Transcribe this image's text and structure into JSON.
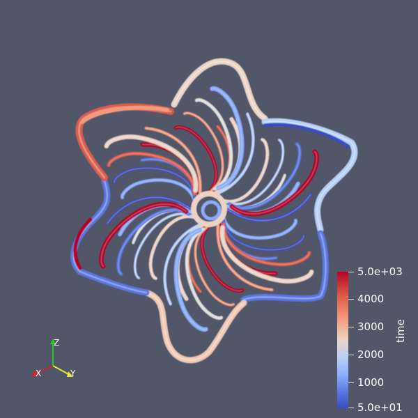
{
  "scalar_bar": {
    "title": "time",
    "labels": [
      "5.0e+03",
      "4000",
      "3000",
      "2000",
      "1000",
      "5.0e+01"
    ],
    "colormap": [
      "#b40426",
      "#dc5d4a",
      "#f49a7b",
      "#ecd3c5",
      "#b7cff9",
      "#89acfd",
      "#5977e3",
      "#3b4cc0"
    ]
  },
  "axes": {
    "x_label": "X",
    "y_label": "Y",
    "z_label": "Z"
  },
  "colors": {
    "background": "#525669",
    "red": "#b40426",
    "blue": "#3b4cc0",
    "white": "#dddcdc"
  }
}
